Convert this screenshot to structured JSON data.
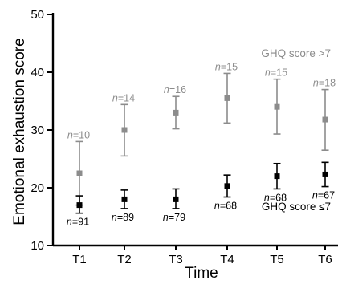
{
  "chart_data": {
    "type": "scatter",
    "title": "",
    "xlabel": "Time",
    "ylabel": "Emotional exhaustion score",
    "categories": [
      "T1",
      "T2",
      "T3",
      "T4",
      "T5",
      "T6"
    ],
    "ylim": [
      10,
      50
    ],
    "yticks": [
      "10",
      "20",
      "30",
      "40",
      "50"
    ],
    "grid": false,
    "series": [
      {
        "name": "GHQ score >7",
        "color": "#8c8c8c",
        "marker": "square",
        "values": [
          22.5,
          30.0,
          33.0,
          35.5,
          34.0,
          31.8
        ],
        "err_low": [
          17.0,
          25.5,
          30.2,
          31.2,
          29.3,
          26.5
        ],
        "err_high": [
          28.0,
          34.4,
          35.8,
          39.8,
          38.8,
          37.0
        ],
        "n_prefix": "n",
        "n_labels": [
          "=10",
          "=14",
          "=16",
          "=15",
          "=15",
          "=18"
        ]
      },
      {
        "name": "GHQ score ≤7",
        "color": "#000000",
        "marker": "square",
        "values": [
          17.0,
          18.0,
          18.0,
          20.3,
          22.0,
          22.3
        ],
        "err_low": [
          15.6,
          16.4,
          16.4,
          18.4,
          19.8,
          20.2
        ],
        "err_high": [
          18.6,
          19.6,
          19.8,
          22.2,
          24.2,
          24.4
        ],
        "n_prefix": "n",
        "n_labels": [
          "=91",
          "=89",
          "=79",
          "=68",
          "=68",
          "=67"
        ]
      }
    ]
  }
}
